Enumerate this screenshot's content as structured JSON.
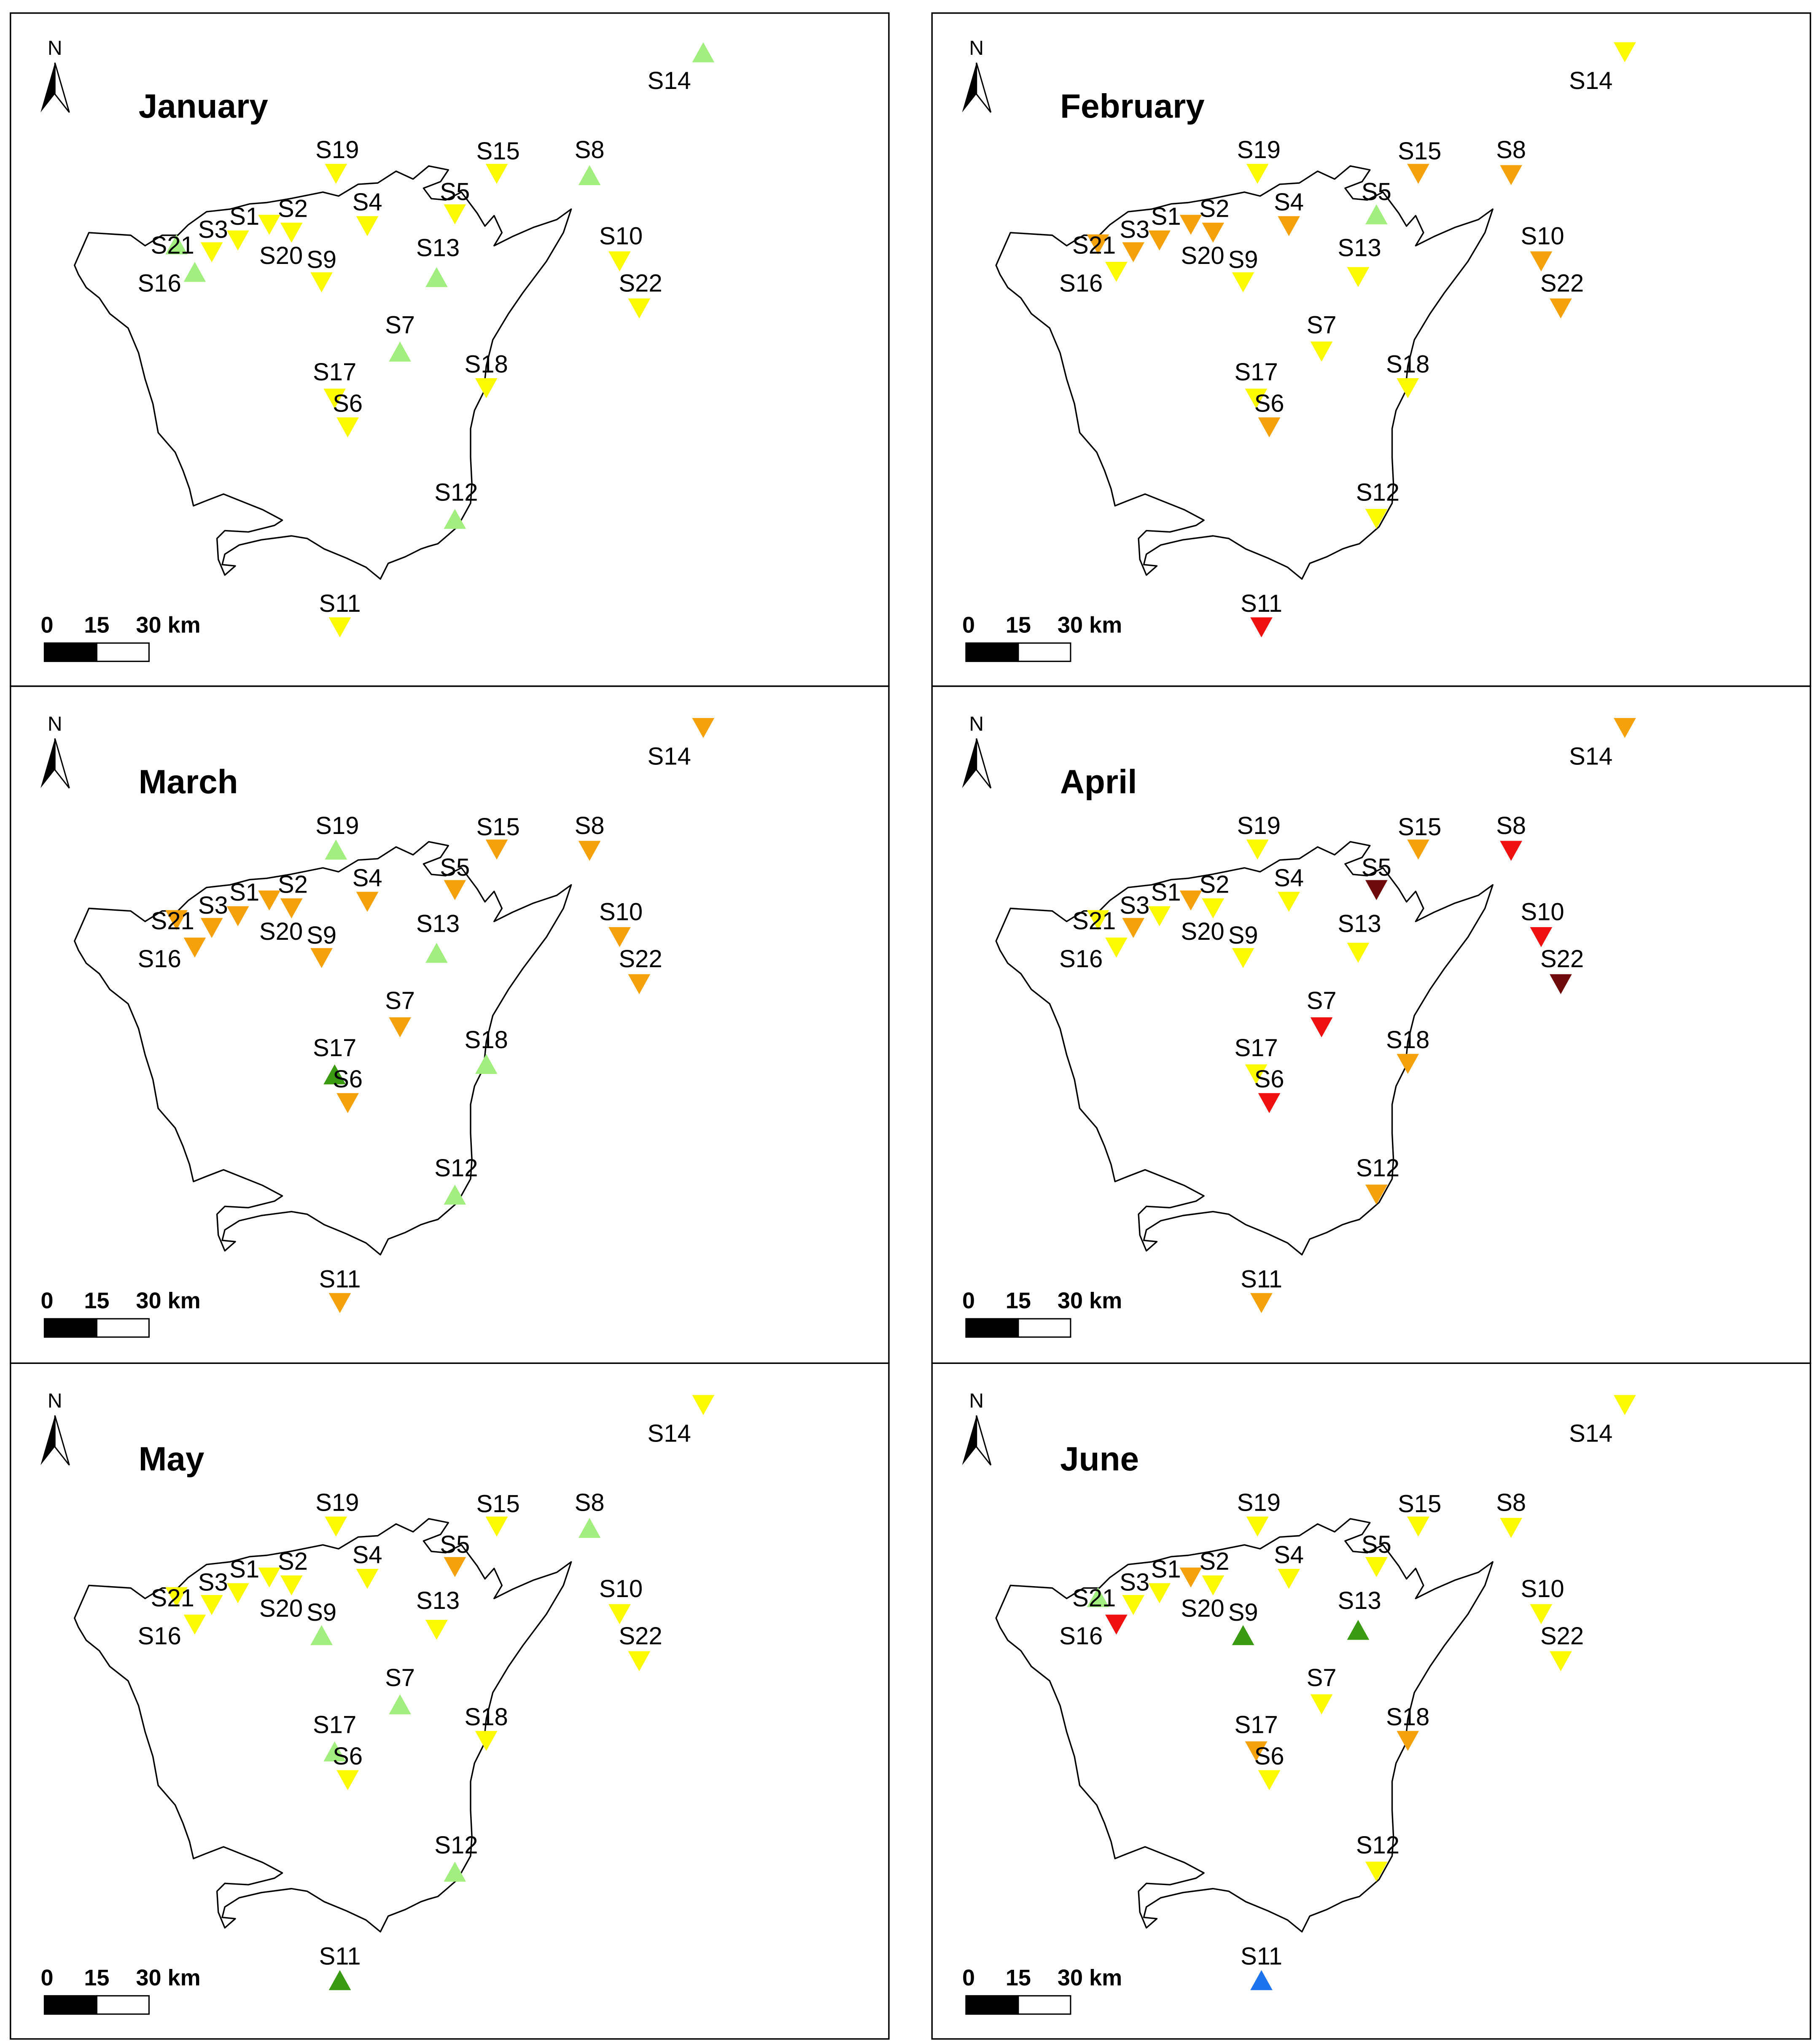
{
  "figure": {
    "north_label": "N",
    "scale_labels": [
      "0",
      "15",
      "30 km"
    ]
  },
  "colors": {
    "light_green": "#a2ee7f",
    "dark_green": "#3a9a12",
    "yellow": "#fbfa00",
    "orange": "#f5a20a",
    "red": "#f01010",
    "dark_red": "#6e0a0a",
    "blue": "#1d73ee"
  },
  "months": [
    {
      "title": "January",
      "stations": [
        {
          "id": "S14",
          "marker": "up",
          "color": "light_green"
        },
        {
          "id": "S19",
          "marker": "down",
          "color": "yellow"
        },
        {
          "id": "S15",
          "marker": "down",
          "color": "yellow"
        },
        {
          "id": "S8",
          "marker": "up",
          "color": "light_green"
        },
        {
          "id": "S5",
          "marker": "down",
          "color": "yellow"
        },
        {
          "id": "S4",
          "marker": "down",
          "color": "yellow"
        },
        {
          "id": "S1",
          "marker": "down",
          "color": "yellow"
        },
        {
          "id": "S2",
          "marker": "down",
          "color": "yellow"
        },
        {
          "id": "S3",
          "marker": "down",
          "color": "yellow"
        },
        {
          "id": "S21",
          "marker": "up",
          "color": "light_green"
        },
        {
          "id": "S16",
          "marker": "up",
          "color": "light_green"
        },
        {
          "id": "S20",
          "marker": "down",
          "color": "yellow"
        },
        {
          "id": "S9",
          "marker": "down",
          "color": "yellow"
        },
        {
          "id": "S13",
          "marker": "up",
          "color": "light_green"
        },
        {
          "id": "S10",
          "marker": "down",
          "color": "yellow"
        },
        {
          "id": "S22",
          "marker": "down",
          "color": "yellow"
        },
        {
          "id": "S7",
          "marker": "up",
          "color": "light_green"
        },
        {
          "id": "S18",
          "marker": "down",
          "color": "yellow"
        },
        {
          "id": "S17",
          "marker": "down",
          "color": "yellow"
        },
        {
          "id": "S6",
          "marker": "down",
          "color": "yellow"
        },
        {
          "id": "S12",
          "marker": "up",
          "color": "light_green"
        },
        {
          "id": "S11",
          "marker": "down",
          "color": "yellow"
        }
      ]
    },
    {
      "title": "February",
      "stations": [
        {
          "id": "S14",
          "marker": "down",
          "color": "yellow"
        },
        {
          "id": "S19",
          "marker": "down",
          "color": "yellow"
        },
        {
          "id": "S15",
          "marker": "down",
          "color": "orange"
        },
        {
          "id": "S8",
          "marker": "down",
          "color": "orange"
        },
        {
          "id": "S5",
          "marker": "up",
          "color": "light_green"
        },
        {
          "id": "S4",
          "marker": "down",
          "color": "orange"
        },
        {
          "id": "S1",
          "marker": "down",
          "color": "orange"
        },
        {
          "id": "S2",
          "marker": "down",
          "color": "orange"
        },
        {
          "id": "S3",
          "marker": "down",
          "color": "orange"
        },
        {
          "id": "S21",
          "marker": "down",
          "color": "orange"
        },
        {
          "id": "S16",
          "marker": "down",
          "color": "yellow"
        },
        {
          "id": "S20",
          "marker": "down",
          "color": "orange"
        },
        {
          "id": "S9",
          "marker": "down",
          "color": "yellow"
        },
        {
          "id": "S13",
          "marker": "down",
          "color": "yellow"
        },
        {
          "id": "S10",
          "marker": "down",
          "color": "orange"
        },
        {
          "id": "S22",
          "marker": "down",
          "color": "orange"
        },
        {
          "id": "S7",
          "marker": "down",
          "color": "yellow"
        },
        {
          "id": "S18",
          "marker": "down",
          "color": "yellow"
        },
        {
          "id": "S17",
          "marker": "down",
          "color": "yellow"
        },
        {
          "id": "S6",
          "marker": "down",
          "color": "orange"
        },
        {
          "id": "S12",
          "marker": "down",
          "color": "yellow"
        },
        {
          "id": "S11",
          "marker": "down",
          "color": "red"
        }
      ]
    },
    {
      "title": "March",
      "stations": [
        {
          "id": "S14",
          "marker": "down",
          "color": "orange"
        },
        {
          "id": "S19",
          "marker": "up",
          "color": "light_green"
        },
        {
          "id": "S15",
          "marker": "down",
          "color": "orange"
        },
        {
          "id": "S8",
          "marker": "down",
          "color": "orange"
        },
        {
          "id": "S5",
          "marker": "down",
          "color": "orange"
        },
        {
          "id": "S4",
          "marker": "down",
          "color": "orange"
        },
        {
          "id": "S1",
          "marker": "down",
          "color": "orange"
        },
        {
          "id": "S2",
          "marker": "down",
          "color": "orange"
        },
        {
          "id": "S3",
          "marker": "down",
          "color": "orange"
        },
        {
          "id": "S21",
          "marker": "down",
          "color": "orange"
        },
        {
          "id": "S16",
          "marker": "down",
          "color": "orange"
        },
        {
          "id": "S20",
          "marker": "down",
          "color": "orange"
        },
        {
          "id": "S9",
          "marker": "down",
          "color": "orange"
        },
        {
          "id": "S13",
          "marker": "up",
          "color": "light_green"
        },
        {
          "id": "S10",
          "marker": "down",
          "color": "orange"
        },
        {
          "id": "S22",
          "marker": "down",
          "color": "orange"
        },
        {
          "id": "S7",
          "marker": "down",
          "color": "orange"
        },
        {
          "id": "S18",
          "marker": "up",
          "color": "light_green"
        },
        {
          "id": "S17",
          "marker": "up",
          "color": "dark_green"
        },
        {
          "id": "S6",
          "marker": "down",
          "color": "orange"
        },
        {
          "id": "S12",
          "marker": "up",
          "color": "light_green"
        },
        {
          "id": "S11",
          "marker": "down",
          "color": "orange"
        }
      ]
    },
    {
      "title": "April",
      "stations": [
        {
          "id": "S14",
          "marker": "down",
          "color": "orange"
        },
        {
          "id": "S19",
          "marker": "down",
          "color": "yellow"
        },
        {
          "id": "S15",
          "marker": "down",
          "color": "orange"
        },
        {
          "id": "S8",
          "marker": "down",
          "color": "red"
        },
        {
          "id": "S5",
          "marker": "down",
          "color": "dark_red"
        },
        {
          "id": "S4",
          "marker": "down",
          "color": "yellow"
        },
        {
          "id": "S1",
          "marker": "down",
          "color": "yellow"
        },
        {
          "id": "S2",
          "marker": "down",
          "color": "yellow"
        },
        {
          "id": "S3",
          "marker": "down",
          "color": "orange"
        },
        {
          "id": "S21",
          "marker": "down",
          "color": "yellow"
        },
        {
          "id": "S16",
          "marker": "down",
          "color": "yellow"
        },
        {
          "id": "S20",
          "marker": "down",
          "color": "orange"
        },
        {
          "id": "S9",
          "marker": "down",
          "color": "yellow"
        },
        {
          "id": "S13",
          "marker": "down",
          "color": "yellow"
        },
        {
          "id": "S10",
          "marker": "down",
          "color": "red"
        },
        {
          "id": "S22",
          "marker": "down",
          "color": "dark_red"
        },
        {
          "id": "S7",
          "marker": "down",
          "color": "red"
        },
        {
          "id": "S18",
          "marker": "down",
          "color": "orange"
        },
        {
          "id": "S17",
          "marker": "down",
          "color": "yellow"
        },
        {
          "id": "S6",
          "marker": "down",
          "color": "red"
        },
        {
          "id": "S12",
          "marker": "down",
          "color": "orange"
        },
        {
          "id": "S11",
          "marker": "down",
          "color": "orange"
        }
      ]
    },
    {
      "title": "May",
      "stations": [
        {
          "id": "S14",
          "marker": "down",
          "color": "yellow"
        },
        {
          "id": "S19",
          "marker": "down",
          "color": "yellow"
        },
        {
          "id": "S15",
          "marker": "down",
          "color": "yellow"
        },
        {
          "id": "S8",
          "marker": "up",
          "color": "light_green"
        },
        {
          "id": "S5",
          "marker": "down",
          "color": "orange"
        },
        {
          "id": "S4",
          "marker": "down",
          "color": "yellow"
        },
        {
          "id": "S1",
          "marker": "down",
          "color": "yellow"
        },
        {
          "id": "S2",
          "marker": "down",
          "color": "yellow"
        },
        {
          "id": "S3",
          "marker": "down",
          "color": "yellow"
        },
        {
          "id": "S21",
          "marker": "down",
          "color": "yellow"
        },
        {
          "id": "S16",
          "marker": "down",
          "color": "yellow"
        },
        {
          "id": "S20",
          "marker": "down",
          "color": "yellow"
        },
        {
          "id": "S9",
          "marker": "up",
          "color": "light_green"
        },
        {
          "id": "S13",
          "marker": "down",
          "color": "yellow"
        },
        {
          "id": "S10",
          "marker": "down",
          "color": "yellow"
        },
        {
          "id": "S22",
          "marker": "down",
          "color": "yellow"
        },
        {
          "id": "S7",
          "marker": "up",
          "color": "light_green"
        },
        {
          "id": "S18",
          "marker": "down",
          "color": "yellow"
        },
        {
          "id": "S17",
          "marker": "up",
          "color": "light_green"
        },
        {
          "id": "S6",
          "marker": "down",
          "color": "yellow"
        },
        {
          "id": "S12",
          "marker": "up",
          "color": "light_green"
        },
        {
          "id": "S11",
          "marker": "up",
          "color": "dark_green"
        }
      ]
    },
    {
      "title": "June",
      "stations": [
        {
          "id": "S14",
          "marker": "down",
          "color": "yellow"
        },
        {
          "id": "S19",
          "marker": "down",
          "color": "yellow"
        },
        {
          "id": "S15",
          "marker": "down",
          "color": "yellow"
        },
        {
          "id": "S8",
          "marker": "down",
          "color": "yellow"
        },
        {
          "id": "S5",
          "marker": "down",
          "color": "yellow"
        },
        {
          "id": "S4",
          "marker": "down",
          "color": "yellow"
        },
        {
          "id": "S1",
          "marker": "down",
          "color": "yellow"
        },
        {
          "id": "S2",
          "marker": "down",
          "color": "yellow"
        },
        {
          "id": "S3",
          "marker": "down",
          "color": "yellow"
        },
        {
          "id": "S21",
          "marker": "up",
          "color": "light_green"
        },
        {
          "id": "S16",
          "marker": "down",
          "color": "red"
        },
        {
          "id": "S20",
          "marker": "down",
          "color": "orange"
        },
        {
          "id": "S9",
          "marker": "up",
          "color": "dark_green"
        },
        {
          "id": "S13",
          "marker": "up",
          "color": "dark_green"
        },
        {
          "id": "S10",
          "marker": "down",
          "color": "yellow"
        },
        {
          "id": "S22",
          "marker": "down",
          "color": "yellow"
        },
        {
          "id": "S7",
          "marker": "down",
          "color": "yellow"
        },
        {
          "id": "S18",
          "marker": "down",
          "color": "orange"
        },
        {
          "id": "S17",
          "marker": "down",
          "color": "orange"
        },
        {
          "id": "S6",
          "marker": "down",
          "color": "yellow"
        },
        {
          "id": "S12",
          "marker": "down",
          "color": "yellow"
        },
        {
          "id": "S11",
          "marker": "up",
          "color": "blue"
        }
      ]
    }
  ]
}
